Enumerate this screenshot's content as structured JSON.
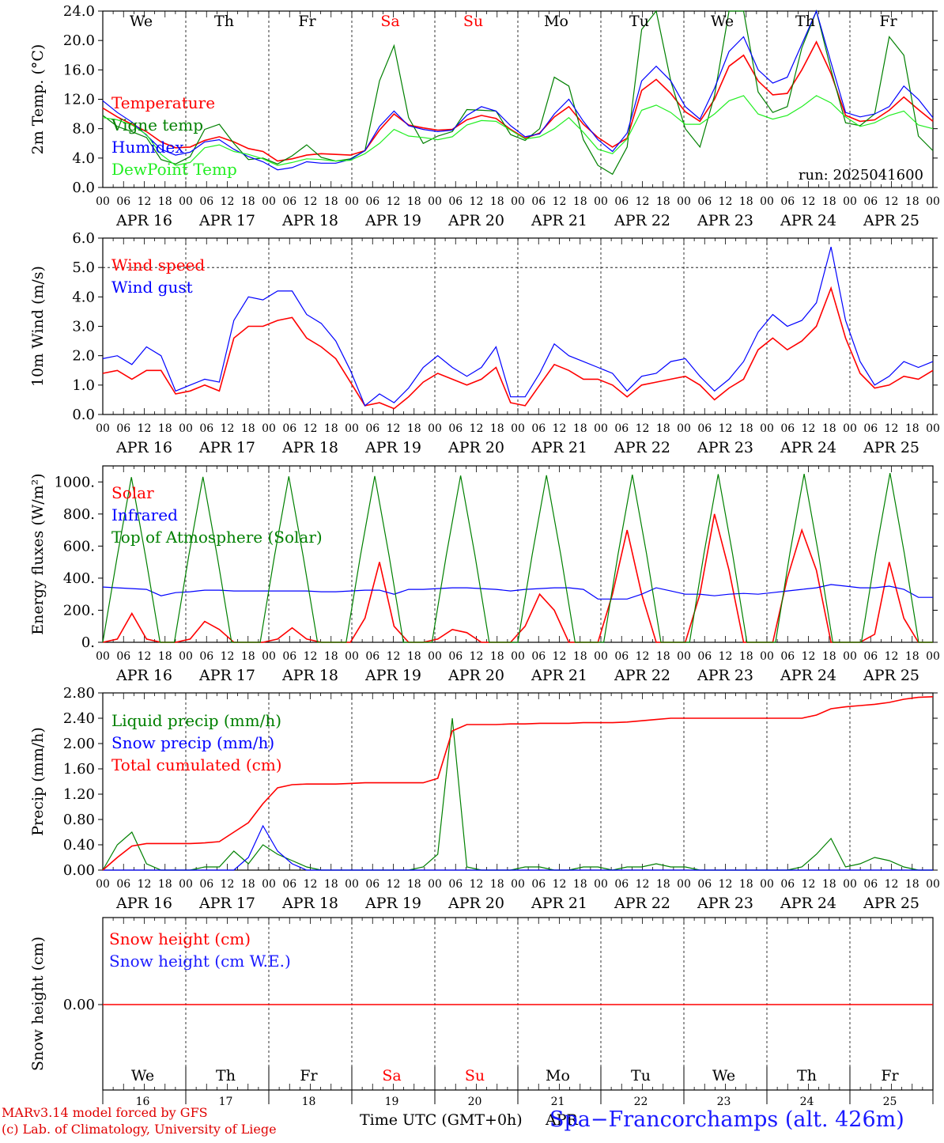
{
  "footer": {
    "credit_line1": "MARv3.14 model forced by GFS",
    "credit_line2": "(c) Lab. of Climatology, University of Liege",
    "xlabel": "Time UTC (GMT+0h)",
    "month": "APR",
    "station": "Spa−Francorchamps (alt. 426m)"
  },
  "run_label": "run: 2025041600",
  "dates": [
    "APR 16",
    "APR 17",
    "APR 18",
    "APR 19",
    "APR 20",
    "APR 21",
    "APR 22",
    "APR 23",
    "APR 24",
    "APR 25"
  ],
  "day_numbers": [
    "16",
    "17",
    "18",
    "19",
    "20",
    "21",
    "22",
    "23",
    "24",
    "25"
  ],
  "weekdays": [
    "We",
    "Th",
    "Fr",
    "Sa",
    "Su",
    "Mo",
    "Tu",
    "We",
    "Th",
    "Fr"
  ],
  "weekend_indices": [
    3,
    4
  ],
  "hour_labels": [
    "00",
    "06",
    "12",
    "18"
  ],
  "colors": {
    "red": "#ff0000",
    "blue": "#0000ff",
    "green": "#008000",
    "light_green": "#22ee22",
    "dark_blue": "#1a1aff"
  },
  "chart_data": [
    {
      "type": "line",
      "ylabel": "2m Temp. (°C)",
      "ylim": [
        0,
        24
      ],
      "y_ticks": [
        "0.0",
        "4.0",
        "8.0",
        "12.0",
        "16.0",
        "20.0",
        "24.0"
      ],
      "x": "hours since APR 16 00 UTC, step 6",
      "series": [
        {
          "name": "Temperature",
          "color": "#ff0000",
          "values": [
            10.8,
            9.6,
            8.6,
            7.6,
            6.2,
            5.4,
            5.5,
            6.4,
            6.9,
            6.2,
            5.3,
            4.9,
            3.6,
            3.9,
            4.4,
            4.6,
            4.5,
            4.4,
            5.0,
            7.8,
            10.0,
            8.5,
            8.1,
            7.8,
            7.9,
            9.2,
            9.8,
            9.4,
            7.9,
            6.7,
            7.4,
            9.6,
            11.0,
            8.6,
            6.8,
            5.5,
            6.7,
            13.2,
            14.7,
            12.8,
            10.3,
            9.0,
            12.0,
            16.5,
            18.0,
            14.5,
            12.6,
            12.8,
            16.0,
            19.8,
            15.5,
            9.8,
            9.0,
            9.2,
            10.5,
            12.3,
            10.6,
            9.0
          ]
        },
        {
          "name": "Vigne temp",
          "color": "#008000",
          "values": [
            9.8,
            8.3,
            7.6,
            6.8,
            3.8,
            3.2,
            4.2,
            7.9,
            8.6,
            6.0,
            3.8,
            4.0,
            3.2,
            4.3,
            5.8,
            4.1,
            3.6,
            3.9,
            5.0,
            14.5,
            19.3,
            9.5,
            6.0,
            7.0,
            7.6,
            10.6,
            10.5,
            10.4,
            7.2,
            6.4,
            8.0,
            15.0,
            13.8,
            6.5,
            3.0,
            1.8,
            5.5,
            21.5,
            25.0,
            14.5,
            8.0,
            5.5,
            12.5,
            24.0,
            25.0,
            13.0,
            10.2,
            11.0,
            19.0,
            24.5,
            16.0,
            8.8,
            8.4,
            10.0,
            20.5,
            18.0,
            7.0,
            5.0
          ]
        },
        {
          "name": "Humidex",
          "color": "#0000ff",
          "values": [
            11.8,
            10.2,
            8.9,
            7.1,
            5.2,
            4.4,
            4.8,
            6.2,
            6.5,
            5.2,
            4.2,
            3.5,
            2.4,
            2.7,
            3.5,
            3.3,
            3.3,
            3.8,
            5.0,
            8.3,
            10.4,
            8.4,
            7.9,
            7.6,
            7.8,
            9.8,
            11.0,
            10.4,
            8.4,
            6.9,
            7.3,
            10.0,
            12.0,
            9.0,
            6.5,
            4.9,
            7.4,
            14.5,
            16.5,
            14.5,
            11.0,
            9.3,
            13.5,
            18.5,
            20.5,
            16.0,
            14.2,
            15.0,
            19.5,
            24.0,
            17.0,
            10.2,
            9.6,
            10.0,
            11.0,
            13.8,
            12.0,
            9.5
          ]
        },
        {
          "name": "DewPoint Temp",
          "color": "#22ee22",
          "values": [
            9.5,
            9.2,
            8.5,
            7.2,
            4.5,
            3.0,
            3.4,
            5.4,
            5.8,
            4.9,
            4.5,
            3.9,
            3.0,
            3.4,
            3.9,
            3.8,
            3.6,
            3.7,
            4.6,
            6.0,
            7.9,
            7.0,
            6.8,
            6.5,
            6.9,
            8.5,
            9.1,
            9.0,
            7.8,
            6.6,
            6.9,
            8.0,
            9.5,
            7.5,
            5.2,
            4.6,
            6.6,
            10.5,
            11.2,
            10.2,
            8.6,
            8.6,
            10.0,
            11.8,
            12.5,
            10.0,
            9.3,
            9.8,
            11.0,
            12.5,
            11.5,
            9.6,
            8.3,
            8.8,
            9.8,
            10.4,
            8.5,
            8.0
          ]
        }
      ]
    },
    {
      "type": "line",
      "ylabel": "10m Wind (m/s)",
      "ylim": [
        0,
        6
      ],
      "y_ticks": [
        "0.0",
        "1.0",
        "2.0",
        "3.0",
        "4.0",
        "5.0",
        "6.0"
      ],
      "reference_line": 5.0,
      "series": [
        {
          "name": "Wind speed",
          "color": "#ff0000",
          "values": [
            1.4,
            1.5,
            1.2,
            1.5,
            1.5,
            0.7,
            0.8,
            1.0,
            0.8,
            2.6,
            3.0,
            3.0,
            3.2,
            3.3,
            2.6,
            2.3,
            1.9,
            1.1,
            0.3,
            0.4,
            0.2,
            0.6,
            1.1,
            1.4,
            1.2,
            1.0,
            1.2,
            1.6,
            0.4,
            0.3,
            1.0,
            1.7,
            1.5,
            1.2,
            1.2,
            1.0,
            0.6,
            1.0,
            1.1,
            1.2,
            1.3,
            1.0,
            0.5,
            0.9,
            1.2,
            2.2,
            2.6,
            2.2,
            2.5,
            3.0,
            4.3,
            2.6,
            1.4,
            0.9,
            1.0,
            1.3,
            1.2,
            1.5
          ]
        },
        {
          "name": "Wind gust",
          "color": "#0000ff",
          "values": [
            1.9,
            2.0,
            1.7,
            2.3,
            2.0,
            0.8,
            1.0,
            1.2,
            1.1,
            3.2,
            4.0,
            3.9,
            4.2,
            4.2,
            3.4,
            3.1,
            2.5,
            1.5,
            0.3,
            0.7,
            0.4,
            0.9,
            1.6,
            2.0,
            1.6,
            1.3,
            1.6,
            2.3,
            0.6,
            0.6,
            1.4,
            2.4,
            2.0,
            1.8,
            1.6,
            1.4,
            0.8,
            1.3,
            1.4,
            1.8,
            1.9,
            1.3,
            0.8,
            1.2,
            1.8,
            2.8,
            3.4,
            3.0,
            3.2,
            3.8,
            5.7,
            3.2,
            1.8,
            1.0,
            1.3,
            1.8,
            1.6,
            1.8
          ]
        }
      ]
    },
    {
      "type": "line",
      "ylabel": "Energy fluxes (W/m²)",
      "ylim": [
        0,
        1100
      ],
      "y_ticks": [
        "0.",
        "200.",
        "400.",
        "600.",
        "800.",
        "1000."
      ],
      "series": [
        {
          "name": "Solar",
          "color": "#ff0000",
          "values": [
            0,
            20,
            180,
            20,
            0,
            0,
            20,
            130,
            80,
            0,
            0,
            0,
            20,
            90,
            20,
            0,
            0,
            0,
            150,
            500,
            100,
            0,
            0,
            20,
            80,
            60,
            0,
            0,
            0,
            100,
            300,
            200,
            0,
            0,
            0,
            300,
            700,
            300,
            0,
            0,
            0,
            300,
            800,
            450,
            0,
            0,
            0,
            400,
            700,
            450,
            0,
            0,
            0,
            50,
            500,
            150,
            0,
            0
          ]
        },
        {
          "name": "Infrared",
          "color": "#0000ff",
          "values": [
            345,
            340,
            335,
            330,
            290,
            310,
            315,
            325,
            325,
            320,
            320,
            320,
            320,
            320,
            320,
            315,
            315,
            320,
            325,
            325,
            300,
            330,
            330,
            335,
            340,
            340,
            335,
            330,
            320,
            330,
            335,
            340,
            340,
            330,
            270,
            270,
            270,
            300,
            340,
            320,
            300,
            300,
            290,
            300,
            305,
            300,
            310,
            320,
            330,
            340,
            360,
            350,
            340,
            340,
            350,
            330,
            280,
            280
          ]
        },
        {
          "name": "Top of Atmosphere (Solar)",
          "color": "#008000",
          "values": [
            0,
            530,
            1030,
            530,
            0,
            0,
            535,
            1032,
            535,
            0,
            0,
            0,
            538,
            1035,
            538,
            0,
            0,
            0,
            540,
            1037,
            540,
            0,
            0,
            0,
            543,
            1040,
            543,
            0,
            0,
            0,
            545,
            1042,
            545,
            0,
            0,
            0,
            548,
            1045,
            548,
            0,
            0,
            0,
            550,
            1048,
            550,
            0,
            0,
            0,
            553,
            1050,
            553,
            0,
            0,
            0,
            555,
            1055,
            555,
            0,
            0
          ]
        }
      ]
    },
    {
      "type": "line",
      "ylabel": "Precip (mm/h)",
      "ylim": [
        0,
        2.8
      ],
      "y_ticks": [
        "0.00",
        "0.40",
        "0.80",
        "1.20",
        "1.60",
        "2.00",
        "2.40",
        "2.80"
      ],
      "series": [
        {
          "name": "Liquid precip (mm/h)",
          "color": "#008000",
          "values": [
            0,
            0.4,
            0.6,
            0.1,
            0,
            0,
            0,
            0.05,
            0.05,
            0.3,
            0.1,
            0.4,
            0.25,
            0.15,
            0.05,
            0,
            0,
            0,
            0,
            0,
            0,
            0,
            0.05,
            0.25,
            2.4,
            0.05,
            0,
            0,
            0,
            0.05,
            0.05,
            0,
            0,
            0.05,
            0.05,
            0,
            0.05,
            0.05,
            0.1,
            0.05,
            0.05,
            0,
            0,
            0,
            0,
            0,
            0,
            0,
            0.05,
            0.25,
            0.5,
            0.05,
            0.1,
            0.2,
            0.15,
            0.05,
            0,
            0
          ]
        },
        {
          "name": "Snow precip (mm/h)",
          "color": "#0000ff",
          "values": [
            0,
            0,
            0,
            0,
            0,
            0,
            0,
            0,
            0,
            0,
            0.2,
            0.7,
            0.3,
            0.1,
            0,
            0,
            0,
            0,
            0,
            0,
            0,
            0,
            0,
            0,
            0,
            0,
            0,
            0,
            0,
            0,
            0,
            0,
            0,
            0,
            0,
            0,
            0,
            0,
            0,
            0,
            0,
            0,
            0,
            0,
            0,
            0,
            0,
            0,
            0,
            0,
            0,
            0,
            0,
            0,
            0,
            0,
            0,
            0
          ]
        },
        {
          "name": "Total cumulated (cm)",
          "color": "#ff0000",
          "values": [
            0,
            0.2,
            0.38,
            0.42,
            0.42,
            0.42,
            0.42,
            0.43,
            0.45,
            0.6,
            0.75,
            1.05,
            1.3,
            1.35,
            1.36,
            1.36,
            1.36,
            1.37,
            1.38,
            1.38,
            1.38,
            1.38,
            1.38,
            1.45,
            2.2,
            2.3,
            2.3,
            2.3,
            2.31,
            2.31,
            2.32,
            2.32,
            2.32,
            2.33,
            2.33,
            2.33,
            2.34,
            2.36,
            2.38,
            2.4,
            2.4,
            2.4,
            2.4,
            2.4,
            2.4,
            2.4,
            2.4,
            2.4,
            2.4,
            2.45,
            2.55,
            2.58,
            2.6,
            2.62,
            2.65,
            2.7,
            2.73,
            2.74
          ]
        }
      ]
    },
    {
      "type": "line",
      "ylabel": "Snow height (cm)",
      "y_ticks": [
        "0.00"
      ],
      "series": [
        {
          "name": "Snow height (cm)",
          "color": "#ff0000",
          "values": [
            0,
            0
          ]
        },
        {
          "name": "Snow height (cm W.E.)",
          "color": "#1a1aff",
          "values": []
        }
      ]
    }
  ]
}
